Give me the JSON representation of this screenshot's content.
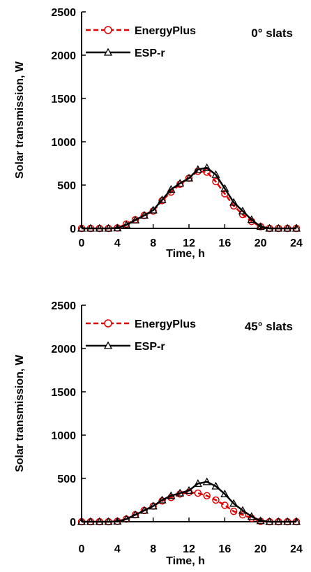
{
  "chart_data": [
    {
      "type": "line",
      "annotation": "0° slats",
      "xlabel": "Time, h",
      "ylabel": "Solar transmission, W",
      "xlim": [
        0,
        24
      ],
      "ylim": [
        0,
        2500
      ],
      "xticks": [
        "0",
        "4",
        "8",
        "12",
        "16",
        "20",
        "24"
      ],
      "yticks": [
        "0",
        "500",
        "1000",
        "1500",
        "2000",
        "2500"
      ],
      "legend_position": "top-left",
      "grid": false,
      "x": [
        0,
        1,
        2,
        3,
        4,
        5,
        6,
        7,
        8,
        9,
        10,
        11,
        12,
        13,
        14,
        15,
        16,
        17,
        18,
        19,
        20,
        21,
        22,
        23,
        24
      ],
      "series": [
        {
          "name": "EnergyPlus",
          "color": "#e00000",
          "style": "dashed",
          "marker": "circle",
          "values": [
            0,
            0,
            0,
            0,
            5,
            50,
            100,
            150,
            200,
            320,
            420,
            510,
            580,
            660,
            650,
            540,
            400,
            260,
            160,
            80,
            20,
            0,
            0,
            0,
            0
          ]
        },
        {
          "name": "ESP-r",
          "color": "#000000",
          "style": "solid",
          "marker": "triangle",
          "values": [
            0,
            0,
            0,
            0,
            3,
            40,
            95,
            150,
            210,
            330,
            450,
            520,
            580,
            680,
            700,
            620,
            460,
            300,
            200,
            100,
            20,
            0,
            0,
            0,
            0
          ]
        }
      ]
    },
    {
      "type": "line",
      "annotation": "45° slats",
      "xlabel": "Time, h",
      "ylabel": "Solar transmission, W",
      "xlim": [
        0,
        24
      ],
      "ylim": [
        0,
        2500
      ],
      "xticks": [
        "0",
        "4",
        "8",
        "12",
        "16",
        "20",
        "24"
      ],
      "yticks": [
        "0",
        "500",
        "1000",
        "1500",
        "2000",
        "2500"
      ],
      "legend_position": "top-left",
      "grid": false,
      "x": [
        0,
        1,
        2,
        3,
        4,
        5,
        6,
        7,
        8,
        9,
        10,
        11,
        12,
        13,
        14,
        15,
        16,
        17,
        18,
        19,
        20,
        21,
        22,
        23,
        24
      ],
      "series": [
        {
          "name": "EnergyPlus",
          "color": "#e00000",
          "style": "dashed",
          "marker": "circle",
          "values": [
            0,
            0,
            0,
            0,
            5,
            30,
            80,
            130,
            180,
            240,
            280,
            320,
            340,
            330,
            300,
            250,
            190,
            120,
            80,
            40,
            5,
            0,
            0,
            0,
            0
          ]
        },
        {
          "name": "ESP-r",
          "color": "#000000",
          "style": "solid",
          "marker": "triangle",
          "values": [
            0,
            0,
            0,
            0,
            3,
            30,
            80,
            130,
            180,
            250,
            300,
            330,
            360,
            440,
            460,
            410,
            320,
            210,
            130,
            60,
            10,
            0,
            0,
            0,
            0
          ]
        }
      ]
    }
  ]
}
